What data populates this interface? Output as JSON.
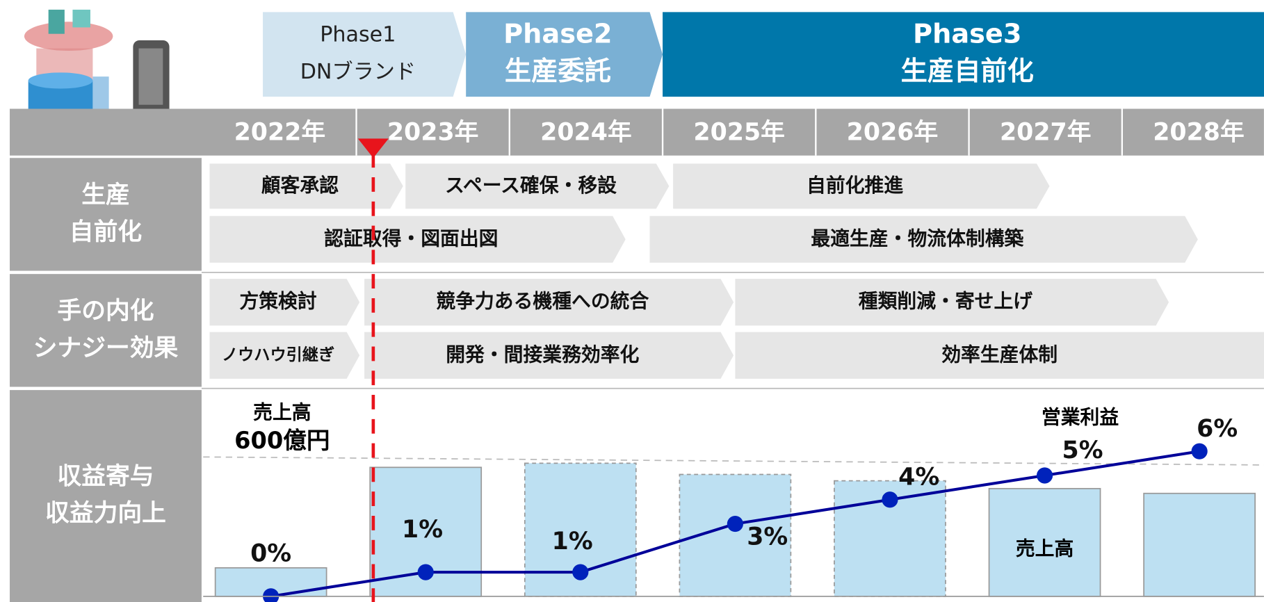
{
  "phases": [
    {
      "name": "Phase1",
      "label": "DNブランド"
    },
    {
      "name": "Phase2",
      "label": "生産委託"
    },
    {
      "name": "Phase3",
      "label": "生産自前化"
    }
  ],
  "years": [
    "2022年",
    "2023年",
    "2024年",
    "2025年",
    "2026年",
    "2027年",
    "2028年"
  ],
  "rows": [
    {
      "label": [
        "生産",
        "自前化"
      ],
      "lanes": [
        [
          "顧客承認",
          "スペース確保・移設",
          "自前化推進"
        ],
        [
          "認証取得・図面出図",
          "最適生産・物流体制構築"
        ]
      ]
    },
    {
      "label": [
        "手の内化",
        "シナジー効果"
      ],
      "lanes": [
        [
          "方策検討",
          "競争力ある機種への統合",
          "種類削減・寄せ上げ"
        ],
        [
          "ノウハウ引継ぎ",
          "開発・間接業務効率化",
          "効率生産体制"
        ]
      ]
    },
    {
      "label": [
        "収益寄与",
        "収益力向上"
      ]
    }
  ],
  "chart_data": {
    "type": "bar_line",
    "annotations": [
      "売上高",
      "600億円"
    ],
    "series": [
      {
        "name": "売上高",
        "type": "bar",
        "color": "#bde0f2",
        "values": [
          125,
          565,
          583,
          534,
          506,
          472,
          451
        ],
        "styles": [
          "solid",
          "solid",
          "dashed",
          "dashed",
          "dashed",
          "solid",
          "solid"
        ]
      },
      {
        "name": "営業利益",
        "type": "line",
        "color": "#000099",
        "values": [
          0,
          1,
          1,
          3,
          4,
          5,
          6
        ],
        "value_labels": [
          "0%",
          "1%",
          "1%",
          "3%",
          "4%",
          "5%",
          "6%"
        ]
      }
    ]
  }
}
